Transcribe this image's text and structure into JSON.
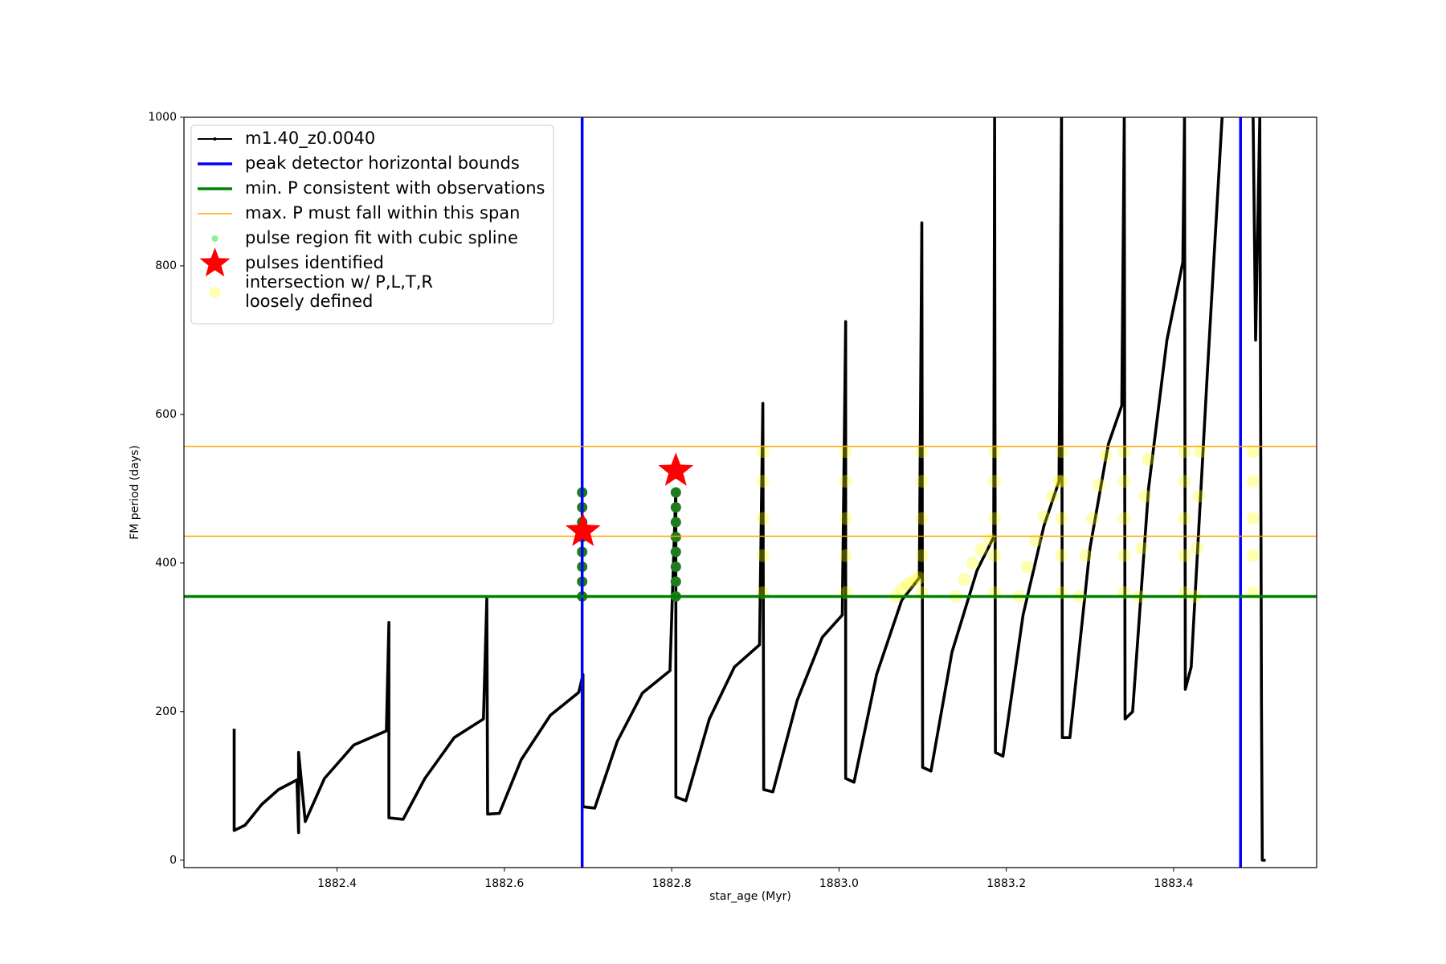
{
  "chart_data": {
    "type": "line",
    "x_label": "star_age (Myr)",
    "y_label": "FM period (days)",
    "xlim": [
      1882.217,
      1883.571
    ],
    "ylim": [
      -10,
      1000
    ],
    "xticks": [
      1882.4,
      1882.6,
      1882.8,
      {
        "value": 1883.0,
        "label": "1883.0"
      },
      1883.2,
      1883.4
    ],
    "yticks": [
      0,
      200,
      400,
      600,
      800,
      1000
    ],
    "legend": "upper left",
    "series": [
      {
        "name": "m1.40_z0.0040",
        "kind": "line",
        "color": "#000000",
        "linewidth": 2,
        "x": [
          1882.277,
          1882.277,
          1882.29,
          1882.31,
          1882.33,
          1882.352,
          1882.354,
          1882.354,
          1882.362,
          1882.385,
          1882.42,
          1882.459,
          1882.462,
          1882.462,
          1882.479,
          1882.505,
          1882.54,
          1882.575,
          1882.579,
          1882.58,
          1882.594,
          1882.62,
          1882.655,
          1882.689,
          1882.694,
          1882.694,
          1882.708,
          1882.735,
          1882.765,
          1882.798,
          1882.805,
          1882.805,
          1882.817,
          1882.845,
          1882.875,
          1882.905,
          1882.909,
          1882.91,
          1882.921,
          1882.95,
          1882.98,
          1883.004,
          1883.008,
          1883.008,
          1883.018,
          1883.045,
          1883.075,
          1883.096,
          1883.099,
          1883.1,
          1883.11,
          1883.135,
          1883.165,
          1883.185,
          1883.186,
          1883.187,
          1883.196,
          1883.22,
          1883.245,
          1883.263,
          1883.266,
          1883.267,
          1883.276,
          1883.3,
          1883.322,
          1883.338,
          1883.341,
          1883.342,
          1883.351,
          1883.37,
          1883.392,
          1883.411,
          1883.413,
          1883.414,
          1883.421,
          1883.44,
          1883.458,
          null,
          1883.495,
          1883.498,
          1883.503,
          1883.505,
          1883.506,
          1883.51
        ],
        "values": [
          177,
          40,
          47,
          75,
          95,
          108,
          37,
          145,
          52,
          110,
          155,
          174,
          320,
          57,
          55,
          110,
          165,
          190,
          352,
          62,
          63,
          135,
          195,
          226,
          250,
          72,
          70,
          160,
          225,
          255,
          500,
          85,
          80,
          190,
          260,
          290,
          615,
          95,
          92,
          215,
          300,
          330,
          725,
          110,
          105,
          250,
          350,
          380,
          858,
          125,
          120,
          280,
          390,
          435,
          1000,
          145,
          140,
          330,
          450,
          510,
          1000,
          165,
          165,
          420,
          560,
          612,
          1000,
          190,
          200,
          500,
          700,
          805,
          1000,
          230,
          260,
          650,
          1000,
          null,
          1000,
          700,
          1000,
          210,
          0,
          0
        ]
      },
      {
        "name": "peak detector horizontal bounds",
        "kind": "vline",
        "color": "#0000ff",
        "linewidth": 3.5,
        "x": [
          1882.693,
          1883.48
        ]
      },
      {
        "name": "min. P consistent with observations",
        "kind": "hline",
        "color": "#008000",
        "linewidth": 3.5,
        "values": [
          355
        ]
      },
      {
        "name": "max. P must fall within this span",
        "kind": "hline",
        "color": "#ffa500",
        "linewidth": 1.5,
        "values": [
          557,
          436
        ]
      },
      {
        "name": "pulse region fit with cubic spline",
        "kind": "scatter",
        "color": "#1e7b1e",
        "x": [
          1882.693,
          1882.693,
          1882.693,
          1882.693,
          1882.693,
          1882.693,
          1882.693,
          1882.693,
          1882.805,
          1882.805,
          1882.805,
          1882.805,
          1882.805,
          1882.805,
          1882.805,
          1882.805
        ],
        "values": [
          355,
          375,
          395,
          415,
          435,
          455,
          475,
          495,
          355,
          375,
          395,
          415,
          435,
          455,
          475,
          495
        ]
      },
      {
        "name": "pulses identified",
        "kind": "star",
        "color": "#ff0000",
        "x": [
          1882.694,
          1882.805
        ],
        "values": [
          443,
          524
        ]
      },
      {
        "name": "intersection w/ P,L,T,R\nloosely defined",
        "kind": "scatter",
        "color": "#ffff00",
        "alpha": 0.3,
        "x": [
          1882.909,
          1882.909,
          1882.909,
          1882.909,
          1882.909,
          1883.008,
          1883.008,
          1883.008,
          1883.008,
          1883.008,
          1883.099,
          1883.099,
          1883.099,
          1883.099,
          1883.099,
          1883.186,
          1883.186,
          1883.186,
          1883.186,
          1883.186,
          1883.266,
          1883.266,
          1883.266,
          1883.266,
          1883.266,
          1883.341,
          1883.341,
          1883.341,
          1883.341,
          1883.341,
          1883.413,
          1883.413,
          1883.413,
          1883.413,
          1883.413,
          1883.495,
          1883.495,
          1883.495,
          1883.495,
          1883.495,
          1883.068,
          1883.075,
          1883.082,
          1883.09,
          1883.096,
          1883.14,
          1883.15,
          1883.16,
          1883.17,
          1883.18,
          1883.215,
          1883.225,
          1883.235,
          1883.245,
          1883.255,
          1883.263,
          1883.287,
          1883.295,
          1883.303,
          1883.311,
          1883.319,
          1883.358,
          1883.362,
          1883.366,
          1883.37,
          1883.426,
          1883.428,
          1883.43,
          1883.432
        ],
        "values": [
          360,
          410,
          460,
          510,
          550,
          360,
          410,
          460,
          510,
          550,
          360,
          410,
          460,
          510,
          550,
          360,
          410,
          460,
          510,
          550,
          360,
          410,
          460,
          510,
          550,
          360,
          410,
          460,
          510,
          550,
          360,
          410,
          460,
          510,
          550,
          360,
          410,
          460,
          510,
          550,
          355,
          365,
          372,
          377,
          380,
          355,
          378,
          400,
          418,
          432,
          355,
          395,
          430,
          462,
          490,
          510,
          355,
          410,
          460,
          505,
          545,
          355,
          420,
          490,
          540,
          355,
          420,
          490,
          550
        ]
      }
    ]
  }
}
